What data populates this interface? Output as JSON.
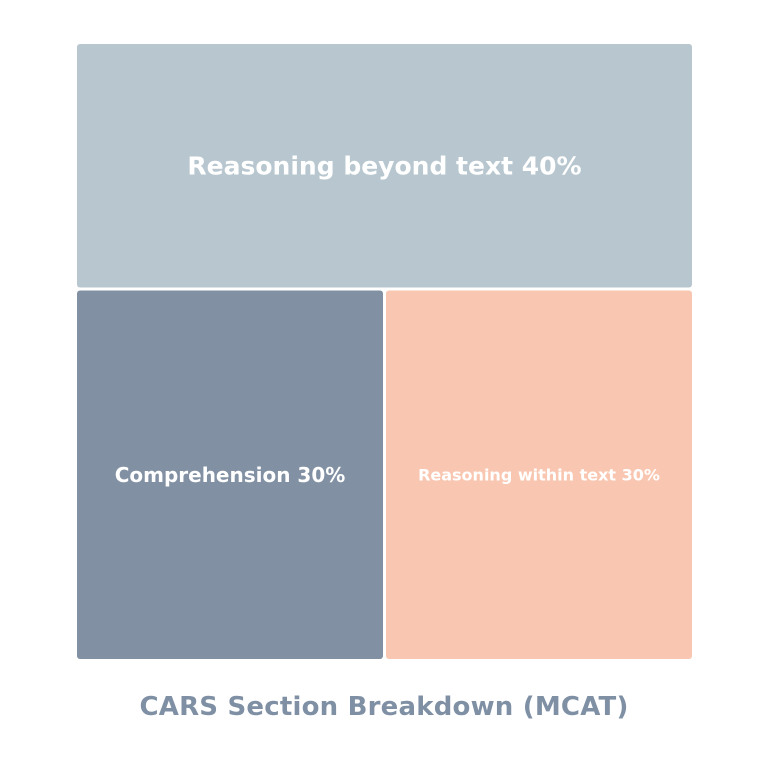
{
  "chart_data": {
    "type": "treemap",
    "title": "CARS Section Breakdown (MCAT)",
    "items": [
      {
        "name": "Reasoning beyond text",
        "value": 40,
        "label": "Reasoning beyond text 40%",
        "color": "#b8c7cf"
      },
      {
        "name": "Comprehension",
        "value": 30,
        "label": "Comprehension 30%",
        "color": "#8190a3"
      },
      {
        "name": "Reasoning within text",
        "value": 30,
        "label": "Reasoning within text 30%",
        "color": "#f9c7b1"
      }
    ]
  }
}
